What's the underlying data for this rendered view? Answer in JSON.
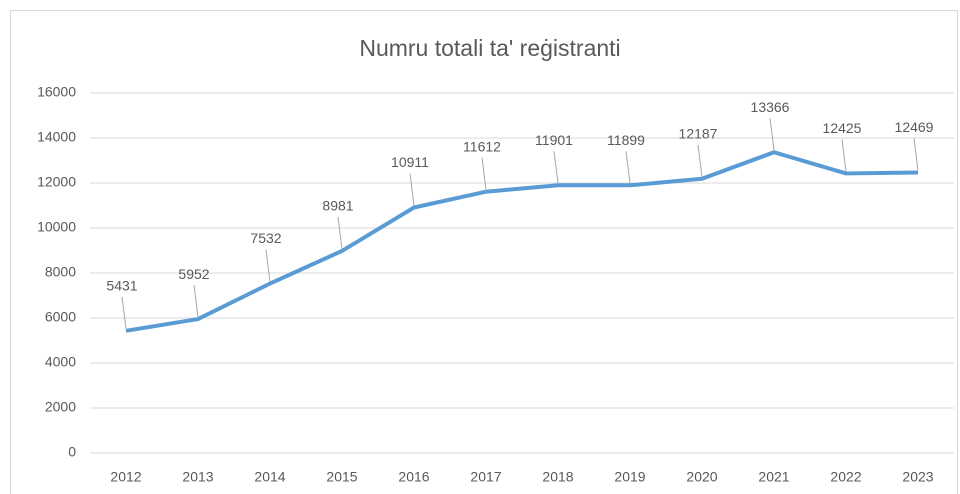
{
  "chart_data": {
    "type": "line",
    "title": "Numru totali ta' reġistranti",
    "categories": [
      "2012",
      "2013",
      "2014",
      "2015",
      "2016",
      "2017",
      "2018",
      "2019",
      "2020",
      "2021",
      "2022",
      "2023"
    ],
    "series": [
      {
        "name": "Numru totali ta' reġistranti",
        "color": "#5b9bd5",
        "values": [
          5431,
          5952,
          7532,
          8981,
          10911,
          11612,
          11901,
          11899,
          12187,
          13366,
          12425,
          12469
        ]
      }
    ],
    "ylim": [
      0,
      16000
    ],
    "yticks": [
      0,
      2000,
      4000,
      6000,
      8000,
      10000,
      12000,
      14000,
      16000
    ],
    "grid": true,
    "legend": false
  }
}
